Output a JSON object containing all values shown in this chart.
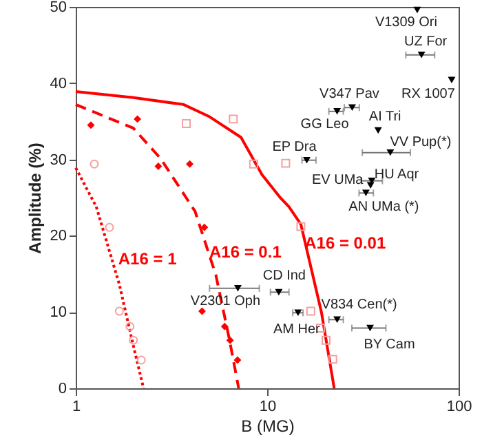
{
  "chart_data": {
    "type": "scatter",
    "xlabel": "B (MG)",
    "ylabel": "Amplitude (%)",
    "log": "x",
    "xlim": [
      1,
      100
    ],
    "xticks": [
      1,
      10,
      100
    ],
    "ylim": [
      0,
      50
    ],
    "yticks": [
      0,
      10,
      20,
      30,
      40,
      50
    ],
    "grid": false,
    "series": [
      {
        "type": "line",
        "color": "#ff0000",
        "line_style": "solid",
        "marker": "none",
        "x": [
          1,
          2,
          3.66,
          5,
          7.3,
          9.4,
          11.7,
          13,
          15,
          19.2,
          22.4
        ],
        "values": [
          38.9,
          38.1,
          37.2,
          35.6,
          32.9,
          28.0,
          25.0,
          23.8,
          21.5,
          10,
          0
        ]
      },
      {
        "type": "line",
        "color": "#ff0000",
        "line_style": "dashed",
        "marker": "none",
        "x": [
          1,
          2,
          2.78,
          4.2,
          5.4,
          6.35,
          7.1
        ],
        "values": [
          37.2,
          34.1,
          30.1,
          23.2,
          14.8,
          6.4,
          0
        ]
      },
      {
        "type": "line",
        "color": "#ff0000",
        "line_style": "dotted",
        "marker": "none",
        "x": [
          1,
          1.28,
          1.69,
          1.99,
          2.26
        ],
        "values": [
          28.9,
          23.8,
          13.6,
          5.8,
          0
        ]
      },
      {
        "color": "#ff0000",
        "marker": "diamond",
        "x": [
          1.2,
          2.1,
          2.7,
          3.94,
          4.7,
          4.57,
          6.0,
          6.4,
          7.0
        ],
        "values": [
          34.5,
          35.3,
          29.1,
          29.4,
          21.1,
          10.1,
          8.1,
          6.3,
          3.7
        ]
      },
      {
        "color": "#f4a0a0",
        "marker": "square",
        "x": [
          3.78,
          6.65,
          8.5,
          12.5,
          15.0,
          16.9,
          19.0,
          20.3,
          22.0
        ],
        "values": [
          34.7,
          35.3,
          29.4,
          29.5,
          21.2,
          10.1,
          7.9,
          6.3,
          3.8
        ]
      },
      {
        "color": "#f4a0a0",
        "marker": "circle",
        "x": [
          1.25,
          1.5,
          1.69,
          1.92,
          2.0,
          2.2
        ],
        "values": [
          29.4,
          21.1,
          10.1,
          8.1,
          6.3,
          3.7
        ]
      },
      {
        "color": "#000000",
        "marker": "triangle",
        "x": [
          60.8,
          64,
          92,
          27.8,
          23.2,
          38,
          44,
          16.1,
          35.2,
          34.7,
          32.8,
          7.03,
          11.5,
          14.5,
          23.2,
          34.5
        ],
        "values": [
          49.6,
          43.7,
          40.4,
          36.8,
          36.3,
          33.8,
          30.9,
          29.9,
          27.2,
          26.6,
          25.6,
          13.1,
          12.6,
          9.9,
          9.0,
          7.9
        ],
        "xerrors": [
          null,
          [
            53,
            75
          ],
          null,
          [
            25.3,
            30.3
          ],
          [
            21,
            25
          ],
          null,
          [
            31.4,
            56
          ],
          [
            15.2,
            18
          ],
          [
            31,
            40
          ],
          null,
          [
            30.2,
            35.9
          ],
          [
            5.0,
            9.1
          ],
          [
            10.4,
            13.0
          ],
          [
            13.6,
            15.4
          ],
          [
            21,
            25
          ],
          [
            27.7,
            41.7
          ]
        ]
      }
    ],
    "annotations": [
      {
        "text": "A16 = 1",
        "x": 1.54,
        "y": 17.0
      },
      {
        "text": "A16 = 0.1",
        "x": 4.92,
        "y": 17.9
      },
      {
        "text": "A16 = 0.01",
        "x": 15.8,
        "y": 19.0
      },
      {
        "text": "V1309 Ori",
        "x": 60.8,
        "y": 49.6
      },
      {
        "text": "UZ For",
        "x": 64,
        "y": 43.7
      },
      {
        "text": "RX 1007",
        "x": 92,
        "y": 40.4
      },
      {
        "text": "V347 Pav",
        "x": 27.8,
        "y": 36.8
      },
      {
        "text": "GG Leo",
        "x": 23.2,
        "y": 36.3
      },
      {
        "text": "AI Tri",
        "x": 38,
        "y": 33.8
      },
      {
        "text": "VV Pup(*)",
        "x": 44,
        "y": 30.9
      },
      {
        "text": "EP Dra",
        "x": 16.1,
        "y": 29.9
      },
      {
        "text": "EV UMa",
        "x": 34.7,
        "y": 26.6
      },
      {
        "text": "HU Aqr",
        "x": 35.2,
        "y": 27.2
      },
      {
        "text": "AN UMa (*)",
        "x": 32.8,
        "y": 25.6
      },
      {
        "text": "V2301 Oph",
        "x": 7.03,
        "y": 13.1
      },
      {
        "text": "CD Ind",
        "x": 11.5,
        "y": 12.6
      },
      {
        "text": "AM Her",
        "x": 14.5,
        "y": 9.9
      },
      {
        "text": "V834 Cen(*)",
        "x": 23.2,
        "y": 9.0
      },
      {
        "text": "BY Cam",
        "x": 34.5,
        "y": 7.9
      }
    ]
  }
}
